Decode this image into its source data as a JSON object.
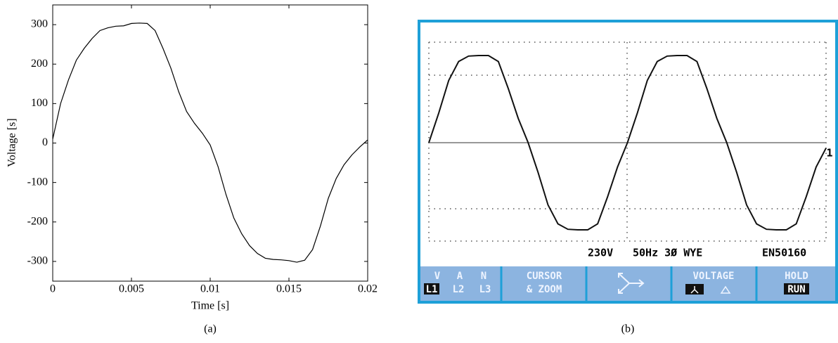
{
  "chart_data": [
    {
      "type": "line",
      "caption": "(a)",
      "x_label": "Time [s]",
      "y_label": "Voltage [s]",
      "color": "#000000",
      "x": [
        0,
        0.0005,
        0.001,
        0.0015,
        0.002,
        0.0025,
        0.003,
        0.0035,
        0.004,
        0.0045,
        0.005,
        0.0055,
        0.006,
        0.0065,
        0.007,
        0.0075,
        0.008,
        0.0085,
        0.009,
        0.0095,
        0.01,
        0.0105,
        0.011,
        0.0115,
        0.012,
        0.0125,
        0.013,
        0.0135,
        0.014,
        0.0145,
        0.015,
        0.0155,
        0.016,
        0.0165,
        0.017,
        0.0175,
        0.018,
        0.0185,
        0.019,
        0.0195,
        0.02
      ],
      "values": [
        10,
        100,
        160,
        210,
        240,
        265,
        285,
        292,
        296,
        297,
        303,
        304,
        303,
        285,
        240,
        190,
        130,
        80,
        50,
        25,
        -5,
        -60,
        -130,
        -190,
        -230,
        -260,
        -280,
        -292,
        -295,
        -296,
        -298,
        -302,
        -297,
        -270,
        -210,
        -140,
        -90,
        -55,
        -30,
        -10,
        8
      ],
      "xlim": [
        0,
        0.02
      ],
      "ylim": [
        -350,
        350
      ],
      "xticks": [
        0,
        0.005,
        0.01,
        0.015,
        0.02
      ],
      "yticks": [
        -300,
        -200,
        -100,
        0,
        100,
        200,
        300
      ]
    },
    {
      "type": "line",
      "caption": "(b)",
      "color": "#111111",
      "x": [
        0,
        0.001,
        0.002,
        0.003,
        0.004,
        0.005,
        0.006,
        0.007,
        0.008,
        0.009,
        0.01,
        0.011,
        0.012,
        0.013,
        0.014,
        0.015,
        0.016,
        0.017,
        0.018,
        0.019,
        0.02,
        0.021,
        0.022,
        0.023,
        0.024,
        0.025,
        0.026,
        0.027,
        0.028,
        0.029,
        0.03,
        0.031,
        0.032,
        0.033,
        0.034,
        0.035,
        0.036,
        0.037,
        0.038,
        0.039,
        0.04
      ],
      "values": [
        0,
        110,
        230,
        300,
        320,
        322,
        322,
        300,
        200,
        90,
        0,
        -110,
        -230,
        -300,
        -320,
        -322,
        -322,
        -300,
        -200,
        -90,
        0,
        110,
        230,
        300,
        320,
        322,
        322,
        300,
        200,
        90,
        0,
        -110,
        -230,
        -300,
        -320,
        -322,
        -322,
        -300,
        -200,
        -90,
        -20
      ],
      "xlim": [
        0,
        0.04
      ],
      "ylim": [
        -400,
        400
      ],
      "marker": "1",
      "status": [
        "230V",
        "50Hz 3Ø WYE",
        "EN50160"
      ],
      "softkeys": [
        {
          "top": [
            "V",
            "A",
            "N"
          ],
          "bottom": [
            "L1",
            "L2",
            "L3"
          ]
        },
        {
          "top": "CURSOR",
          "bottom": "& ZOOM"
        },
        {
          "top": "VOLTAGE"
        },
        {
          "top": "HOLD",
          "bottom": "RUN"
        }
      ]
    }
  ]
}
